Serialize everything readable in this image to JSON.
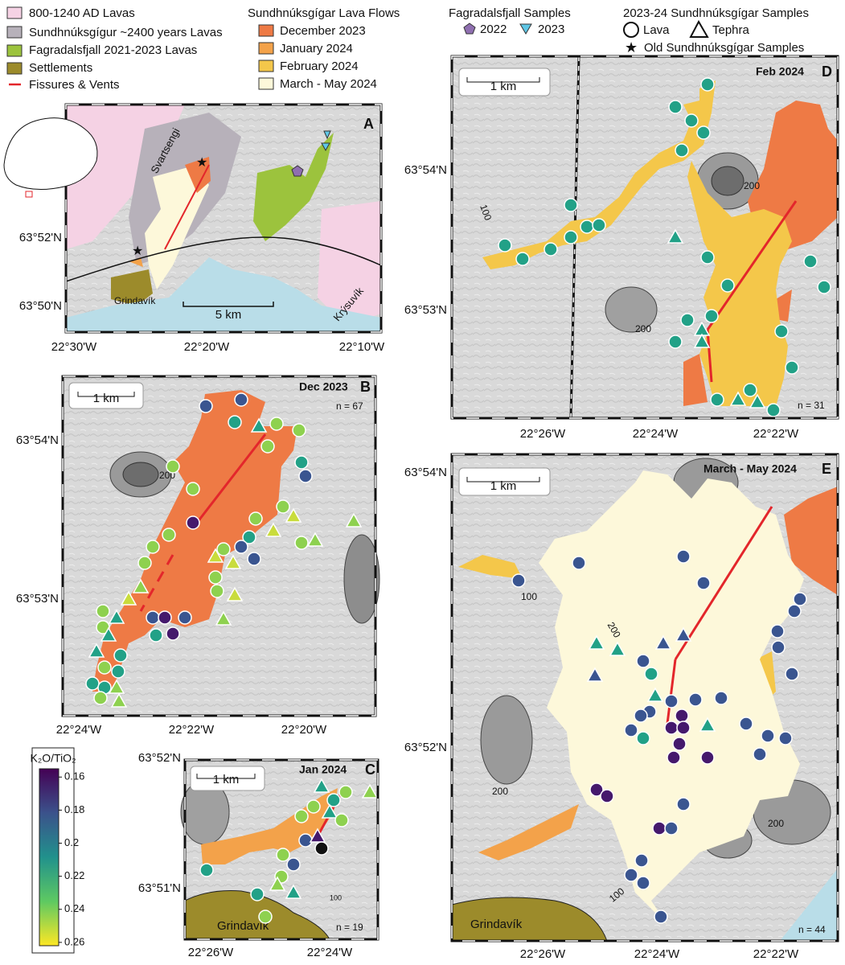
{
  "legend": {
    "units": [
      {
        "label": "800-1240 AD Lavas",
        "color": "#f5d2e4"
      },
      {
        "label": "Sundhnúksgígur ~2400 years Lavas",
        "color": "#b7b1ba"
      },
      {
        "label": "Fagradalsfjall 2021-2023 Lavas",
        "color": "#9cc33d"
      },
      {
        "label": "Settlements",
        "color": "#9c8b2b"
      },
      {
        "label": "Fissures & Vents",
        "color": "#e3262b"
      }
    ],
    "flows": {
      "title": "Sundhnúksgígar Lava Flows",
      "items": [
        {
          "label": "December 2023",
          "color": "#ee7a45"
        },
        {
          "label": "January 2024",
          "color": "#f3a24a"
        },
        {
          "label": "February 2024",
          "color": "#f4c74a"
        },
        {
          "label": "March - May 2024",
          "color": "#fdf8da"
        }
      ]
    },
    "fagradalsfjall": {
      "title": "Fagradalsfjall Samples",
      "items": [
        {
          "label": "2022",
          "color": "#8f6fb0"
        },
        {
          "label": "2023",
          "color": "#5fc7e6"
        }
      ]
    },
    "samples": {
      "title": "2023-24 Sundhnúksgígar Samples",
      "items": [
        "Lava",
        "Tephra",
        "Old Sundhnúksgígar Samples"
      ]
    }
  },
  "panels": {
    "A": {
      "label": "A",
      "scale": "5 km",
      "x_labels": [
        "22°30'W",
        "22°20'W",
        "22°10'W"
      ],
      "y_labels": [
        "63°52'N",
        "63°50'N"
      ],
      "places": [
        "Svartsengi",
        "Grindavík",
        "Krýsuvík"
      ]
    },
    "B": {
      "label": "B",
      "title": "Dec 2023",
      "n": "n = 67",
      "scale": "1 km",
      "x_labels": [
        "22°24'W",
        "22°22'W",
        "22°20'W"
      ],
      "y_labels": [
        "63°54'N",
        "63°53'N"
      ],
      "contours": [
        "200"
      ]
    },
    "C": {
      "label": "C",
      "title": "Jan 2024",
      "n": "n = 19",
      "scale": "1 km",
      "x_labels": [
        "22°26'W",
        "22°24'W"
      ],
      "y_labels": [
        "63°52'N",
        "63°51'N"
      ],
      "places": [
        "Grindavík"
      ],
      "contours": [
        "100"
      ]
    },
    "D": {
      "label": "D",
      "title": "Feb 2024",
      "n": "n = 31",
      "scale": "1 km",
      "x_labels": [
        "22°26'W",
        "22°24'W",
        "22°22'W"
      ],
      "y_labels": [
        "63°54'N",
        "63°53'N"
      ],
      "contours": [
        "100",
        "200",
        "200"
      ]
    },
    "E": {
      "label": "E",
      "title": "March - May 2024",
      "n": "n = 44",
      "scale": "1 km",
      "x_labels": [
        "22°26'W",
        "22°24'W",
        "22°22'W"
      ],
      "y_labels": [
        "63°54'N",
        "63°52'N"
      ],
      "places": [
        "Grindavík"
      ],
      "contours": [
        "100",
        "200",
        "200",
        "200",
        "100"
      ]
    }
  },
  "colorbar": {
    "title": "K₂O/TiO₂",
    "lim": [
      0.155,
      0.262
    ],
    "ticks": [
      0.16,
      0.18,
      0.2,
      0.22,
      0.24,
      0.26
    ]
  }
}
